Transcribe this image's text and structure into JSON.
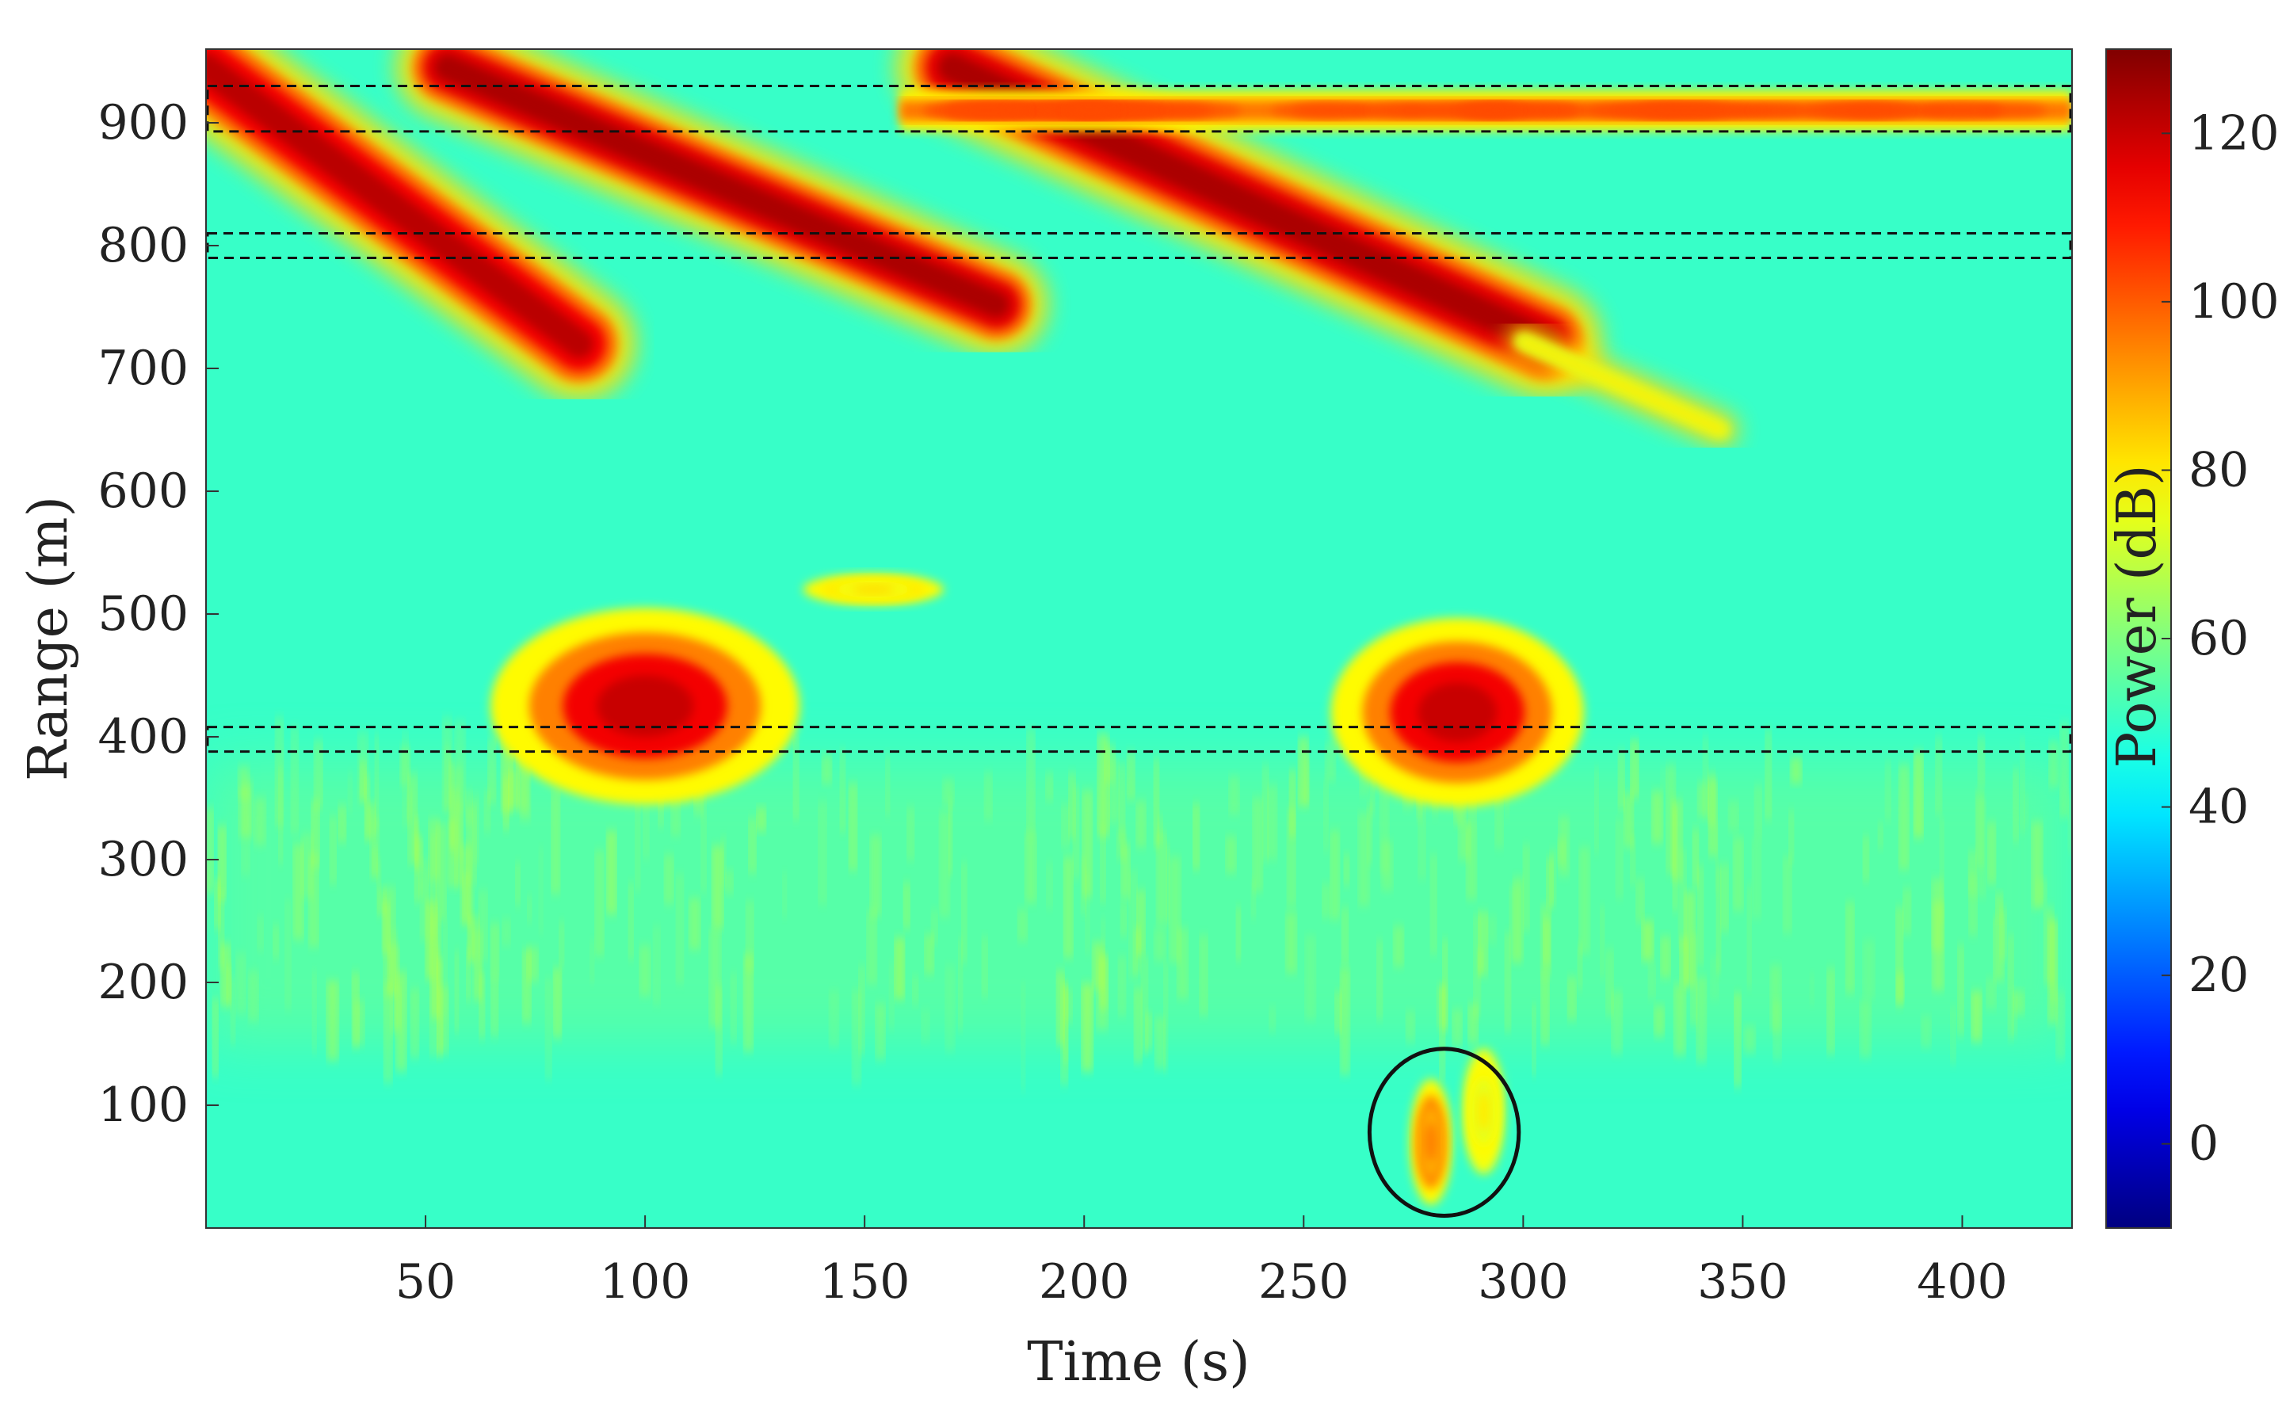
{
  "chart_data": {
    "type": "heatmap",
    "title": "",
    "xlabel": "Time (s)",
    "ylabel": "Range (m)",
    "xlim": [
      0,
      425
    ],
    "ylim": [
      0,
      960
    ],
    "xticks": [
      50,
      100,
      150,
      200,
      250,
      300,
      350,
      400
    ],
    "yticks": [
      100,
      200,
      300,
      400,
      500,
      600,
      700,
      800,
      900
    ],
    "colorbar": {
      "label": "Power (dB)",
      "colormap": "jet",
      "lim": [
        -10,
        130
      ],
      "ticks": [
        0,
        20,
        40,
        60,
        80,
        100,
        120
      ]
    },
    "background_level_db": 50,
    "features": [
      {
        "kind": "diagonal-track",
        "from": [
          0,
          945
        ],
        "to": [
          85,
          720
        ],
        "width": 46,
        "peak_db": 120
      },
      {
        "kind": "diagonal-track",
        "from": [
          55,
          945
        ],
        "to": [
          180,
          752
        ],
        "width": 42,
        "peak_db": 122
      },
      {
        "kind": "diagonal-track",
        "from": [
          170,
          945
        ],
        "to": [
          305,
          722
        ],
        "width": 46,
        "peak_db": 122
      },
      {
        "kind": "faint-track",
        "from": [
          300,
          722
        ],
        "to": [
          345,
          650
        ],
        "width": 14,
        "peak_db": 78
      },
      {
        "kind": "horizontal-band",
        "from": [
          158,
          910
        ],
        "to": [
          425,
          910
        ],
        "width": 14,
        "peak_db": 100
      },
      {
        "kind": "blob",
        "center": [
          100,
          425
        ],
        "rx": 22,
        "ry": 50,
        "peak_db": 120
      },
      {
        "kind": "blob",
        "center": [
          285,
          420
        ],
        "rx": 18,
        "ry": 48,
        "peak_db": 120
      },
      {
        "kind": "blob",
        "center": [
          152,
          520
        ],
        "rx": 10,
        "ry": 8,
        "peak_db": 82
      },
      {
        "kind": "blob",
        "center": [
          279,
          70
        ],
        "rx": 3,
        "ry": 32,
        "peak_db": 95
      },
      {
        "kind": "blob",
        "center": [
          291,
          95
        ],
        "rx": 3,
        "ry": 32,
        "peak_db": 80
      },
      {
        "kind": "speckle-band",
        "range": [
          150,
          380
        ],
        "peak_db": 72
      }
    ],
    "annotations": [
      {
        "kind": "dashed-box",
        "x": [
          0,
          425
        ],
        "y": [
          893,
          930
        ]
      },
      {
        "kind": "dashed-box",
        "x": [
          0,
          425
        ],
        "y": [
          790,
          810
        ]
      },
      {
        "kind": "dashed-box",
        "x": [
          0,
          425
        ],
        "y": [
          388,
          408
        ]
      },
      {
        "kind": "circle",
        "center": [
          282,
          78
        ],
        "rx": 17,
        "ry": 68
      }
    ]
  }
}
